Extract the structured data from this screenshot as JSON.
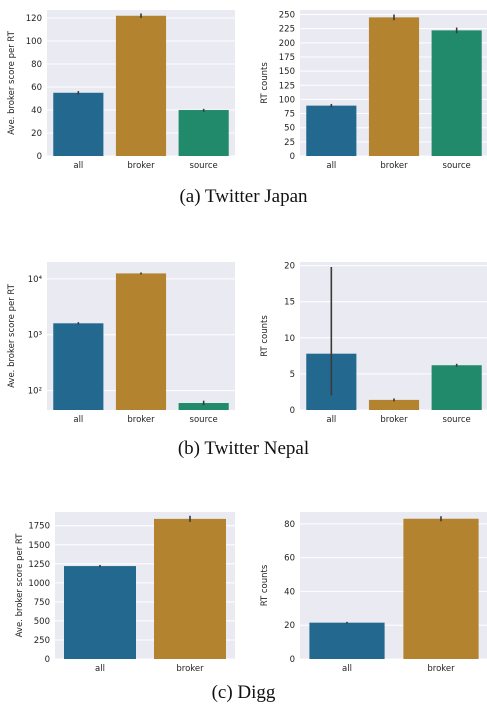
{
  "captions": {
    "a": "(a) Twitter Japan",
    "b": "(b) Twitter Nepal",
    "c": "(c) Digg"
  },
  "colors": {
    "background": "#EAEAF2",
    "grid": "#FFFFFF",
    "all": "#23688F",
    "broker": "#B3832F",
    "source": "#208A6B",
    "errorbar": "#3A3A3A"
  },
  "chart_data": [
    {
      "panel": "a-left",
      "type": "bar",
      "scale": "linear",
      "categories": [
        "all",
        "broker",
        "source"
      ],
      "values": [
        55,
        122,
        40
      ],
      "error": [
        [
          53.5,
          56.5
        ],
        [
          120,
          124
        ],
        [
          38.5,
          41
        ]
      ],
      "ylabel": "Ave. broker score per RT",
      "ylim": [
        0,
        127
      ],
      "yticks": [
        0,
        20,
        40,
        60,
        80,
        100,
        120
      ],
      "ytick_labels": [
        "0",
        "20",
        "40",
        "60",
        "80",
        "100",
        "120"
      ],
      "grid": true
    },
    {
      "panel": "a-right",
      "type": "bar",
      "scale": "linear",
      "categories": [
        "all",
        "broker",
        "source"
      ],
      "values": [
        89,
        245,
        222
      ],
      "error": [
        [
          86,
          92
        ],
        [
          240,
          250
        ],
        [
          217,
          227
        ]
      ],
      "ylabel": "RT counts",
      "ylim": [
        0,
        258
      ],
      "yticks": [
        0,
        25,
        50,
        75,
        100,
        125,
        150,
        175,
        200,
        225,
        250
      ],
      "ytick_labels": [
        "0",
        "25",
        "50",
        "75",
        "100",
        "125",
        "150",
        "175",
        "200",
        "225",
        "250"
      ],
      "grid": true
    },
    {
      "panel": "b-left",
      "type": "bar",
      "scale": "log",
      "categories": [
        "all",
        "broker",
        "source"
      ],
      "values": [
        1600,
        12500,
        60
      ],
      "error": [
        [
          1520,
          1680
        ],
        [
          12000,
          13000
        ],
        [
          55,
          66
        ]
      ],
      "ylabel": "Ave. broker score per RT",
      "ylim": [
        45,
        20000
      ],
      "yticks": [
        100,
        1000,
        10000
      ],
      "ytick_labels": [
        "10²",
        "10³",
        "10⁴"
      ],
      "grid": true
    },
    {
      "panel": "b-right",
      "type": "bar",
      "scale": "linear",
      "categories": [
        "all",
        "broker",
        "source"
      ],
      "values": [
        7.8,
        1.4,
        6.2
      ],
      "error": [
        [
          2,
          19.8
        ],
        [
          1.2,
          1.6
        ],
        [
          6.0,
          6.4
        ]
      ],
      "ylabel": "RT counts",
      "ylim": [
        0,
        20.5
      ],
      "yticks": [
        0,
        5,
        10,
        15,
        20
      ],
      "ytick_labels": [
        "0",
        "5",
        "10",
        "15",
        "20"
      ],
      "grid": true
    },
    {
      "panel": "c-left",
      "type": "bar",
      "scale": "linear",
      "categories": [
        "all",
        "broker"
      ],
      "values": [
        1220,
        1840
      ],
      "error": [
        [
          1205,
          1235
        ],
        [
          1800,
          1880
        ]
      ],
      "ylabel": "Ave. broker score per RT",
      "ylim": [
        0,
        1930
      ],
      "yticks": [
        0,
        250,
        500,
        750,
        1000,
        1250,
        1500,
        1750
      ],
      "ytick_labels": [
        "0",
        "250",
        "500",
        "750",
        "1000",
        "1250",
        "1500",
        "1750"
      ],
      "grid": true
    },
    {
      "panel": "c-right",
      "type": "bar",
      "scale": "linear",
      "categories": [
        "all",
        "broker"
      ],
      "values": [
        21.5,
        83
      ],
      "error": [
        [
          21,
          22
        ],
        [
          81.5,
          84.5
        ]
      ],
      "ylabel": "RT counts",
      "ylim": [
        0,
        87
      ],
      "yticks": [
        0,
        20,
        40,
        60,
        80
      ],
      "ytick_labels": [
        "0",
        "20",
        "40",
        "60",
        "80"
      ],
      "grid": true
    }
  ]
}
